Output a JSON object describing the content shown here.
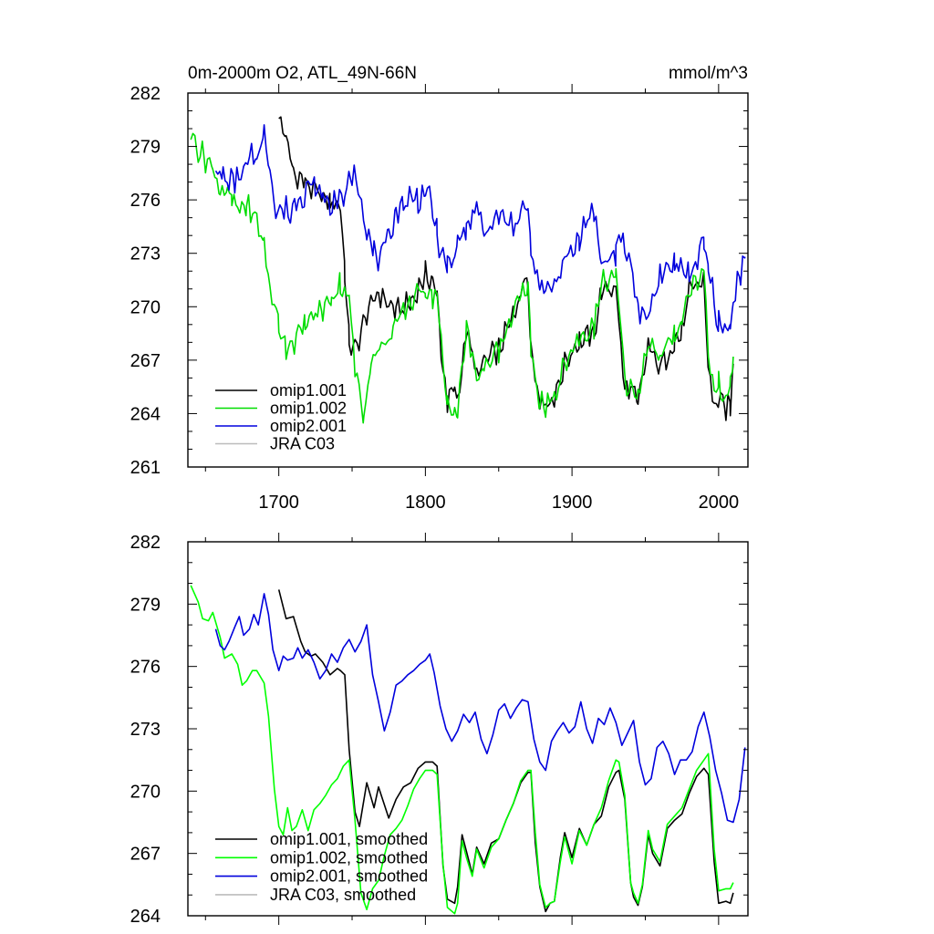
{
  "chart_data": [
    {
      "type": "line",
      "title": "0m-2000m O2, ATL_49N-66N",
      "units": "mmol/m^3",
      "xlim": [
        1638,
        2020
      ],
      "ylim": [
        261,
        282
      ],
      "xticks": [
        1700,
        1800,
        1900,
        2000
      ],
      "yticks": [
        261,
        264,
        267,
        270,
        273,
        276,
        279,
        282
      ],
      "legend_position": "lower-left",
      "series": [
        {
          "name": "omip1.001",
          "color": "#000000",
          "noise": 0.8,
          "x": [
            1700,
            1705,
            1710,
            1718,
            1725,
            1735,
            1742,
            1745,
            1748,
            1752,
            1760,
            1768,
            1780,
            1790,
            1800,
            1805,
            1808,
            1812,
            1815,
            1820,
            1822,
            1828,
            1835,
            1840,
            1850,
            1860,
            1865,
            1870,
            1872,
            1878,
            1882,
            1888,
            1895,
            1902,
            1905,
            1915,
            1920,
            1930,
            1932,
            1936,
            1940,
            1945,
            1952,
            1960,
            1970,
            1975,
            1980,
            1990,
            1993,
            1997,
            2000,
            2005,
            2008,
            2010
          ],
          "y": [
            280.6,
            279.5,
            277.5,
            277,
            276.4,
            275.8,
            275.8,
            272,
            268,
            267.5,
            269.6,
            270.8,
            269.7,
            270.2,
            271.8,
            271.5,
            270.5,
            266.5,
            264.6,
            265.4,
            264.5,
            268.8,
            266.1,
            266.9,
            267.6,
            269.5,
            270.9,
            271.8,
            267.6,
            264.8,
            264.6,
            264.8,
            266.8,
            267.8,
            268,
            268.5,
            270.8,
            271.2,
            269,
            265.2,
            265.5,
            264.4,
            267.8,
            266.5,
            268.1,
            268.5,
            270.8,
            271.5,
            266.5,
            264.3,
            264.7,
            264.2,
            264.5,
            266.8
          ]
        },
        {
          "name": "omip1.002",
          "color": "#00dd00",
          "noise": 0.8,
          "x": [
            1640,
            1645,
            1650,
            1655,
            1660,
            1665,
            1668,
            1672,
            1678,
            1685,
            1690,
            1694,
            1700,
            1705,
            1712,
            1718,
            1725,
            1730,
            1736,
            1742,
            1748,
            1752,
            1758,
            1763,
            1770,
            1778,
            1785,
            1790,
            1797,
            1800,
            1805,
            1808,
            1812,
            1815,
            1820,
            1822,
            1828,
            1835,
            1840,
            1850,
            1860,
            1865,
            1870,
            1872,
            1878,
            1882,
            1888,
            1895,
            1902,
            1905,
            1915,
            1920,
            1930,
            1932,
            1936,
            1940,
            1945,
            1952,
            1960,
            1970,
            1975,
            1980,
            1990,
            1993,
            1997,
            2000,
            2005,
            2008,
            2010
          ],
          "y": [
            279.9,
            278.8,
            278.3,
            277.8,
            276.6,
            276.3,
            276,
            275.4,
            275.7,
            274.8,
            273.5,
            271,
            269,
            267.8,
            268.2,
            269,
            269.6,
            269.8,
            270.5,
            271.3,
            270.5,
            266.5,
            264,
            266.9,
            267.8,
            268.5,
            269.8,
            270.3,
            270.9,
            271,
            270.6,
            270.8,
            266.5,
            264.5,
            264.2,
            264,
            268.8,
            266,
            266.7,
            267.4,
            269.5,
            270.8,
            271,
            267.4,
            264.7,
            264.4,
            264.7,
            266.8,
            267.8,
            268.2,
            268.8,
            271.3,
            271.6,
            270,
            265.8,
            265.4,
            265,
            268.2,
            267,
            268.5,
            269.2,
            271,
            272,
            267.3,
            265.2,
            265.6,
            265,
            265.3,
            267.2
          ]
        },
        {
          "name": "omip2.001",
          "color": "#0000dd",
          "noise": 0.9,
          "x": [
            1657,
            1662,
            1666,
            1670,
            1676,
            1680,
            1685,
            1690,
            1694,
            1698,
            1705,
            1708,
            1712,
            1716,
            1720,
            1725,
            1730,
            1735,
            1740,
            1745,
            1750,
            1755,
            1760,
            1765,
            1770,
            1775,
            1780,
            1785,
            1790,
            1795,
            1800,
            1805,
            1808,
            1812,
            1815,
            1820,
            1822,
            1828,
            1835,
            1840,
            1850,
            1860,
            1865,
            1870,
            1872,
            1878,
            1882,
            1888,
            1895,
            1902,
            1905,
            1915,
            1920,
            1930,
            1932,
            1936,
            1940,
            1945,
            1952,
            1960,
            1970,
            1975,
            1980,
            1990,
            1993,
            1997,
            2000,
            2005,
            2008,
            2010,
            2015,
            2018
          ],
          "y": [
            277.8,
            277.2,
            277,
            277.1,
            277.5,
            278.2,
            278.5,
            279.6,
            278,
            275.3,
            275.5,
            275,
            276.2,
            276.2,
            276.9,
            276.6,
            276.2,
            275.6,
            276.2,
            276,
            277.5,
            276.8,
            274.2,
            273,
            272.6,
            274.1,
            275.3,
            275.8,
            276.2,
            276,
            276.5,
            275.5,
            274,
            272.7,
            272.3,
            272.5,
            274,
            274.3,
            275.6,
            274,
            275,
            274.5,
            275.3,
            275.5,
            272.9,
            271,
            270.8,
            271.5,
            272.5,
            273.4,
            274,
            275.5,
            272.3,
            273.1,
            273.8,
            273.2,
            272.5,
            269.9,
            269.5,
            271.8,
            272.4,
            272,
            271.8,
            273.5,
            272,
            270.4,
            269,
            268.6,
            269,
            270.5,
            272,
            272.8
          ]
        },
        {
          "name": "JRA C03",
          "color": "#bbbbbb",
          "noise": 0,
          "x": [],
          "y": []
        }
      ]
    },
    {
      "type": "line",
      "title": "",
      "units": "",
      "xlim": [
        1638,
        2020
      ],
      "ylim": [
        264,
        282
      ],
      "xticks": [
        1700,
        1800,
        1900,
        2000
      ],
      "yticks": [
        264,
        267,
        270,
        273,
        276,
        279,
        282
      ],
      "legend_position": "lower-left",
      "series": [
        {
          "name": "omip1.001, smoothed",
          "color": "#000000",
          "noise": 0,
          "x": [
            1700,
            1705,
            1710,
            1715,
            1718,
            1722,
            1725,
            1730,
            1735,
            1740,
            1742,
            1745,
            1748,
            1752,
            1755,
            1760,
            1765,
            1768,
            1775,
            1780,
            1785,
            1790,
            1795,
            1800,
            1805,
            1808,
            1812,
            1815,
            1820,
            1822,
            1825,
            1828,
            1832,
            1835,
            1840,
            1845,
            1850,
            1855,
            1860,
            1865,
            1870,
            1872,
            1875,
            1878,
            1882,
            1885,
            1888,
            1892,
            1895,
            1900,
            1905,
            1910,
            1915,
            1920,
            1925,
            1930,
            1932,
            1936,
            1940,
            1942,
            1945,
            1948,
            1952,
            1955,
            1960,
            1965,
            1970,
            1975,
            1980,
            1985,
            1990,
            1993,
            1997,
            2000,
            2005,
            2008,
            2010
          ],
          "y": [
            279.7,
            278.3,
            278.4,
            277.2,
            276.7,
            276.5,
            276.6,
            276.2,
            275.6,
            275.9,
            275.8,
            275.6,
            272,
            269,
            268.3,
            270.4,
            269.2,
            270.2,
            268.7,
            269.6,
            270.2,
            270.4,
            271.1,
            271.4,
            271.4,
            271.2,
            266.4,
            264.8,
            264.6,
            265.4,
            267.9,
            267.1,
            266,
            267.3,
            266.5,
            267.5,
            267.7,
            268.6,
            269.4,
            270.4,
            270.9,
            270.9,
            267.5,
            265.4,
            264.2,
            264.6,
            264.7,
            266.8,
            268,
            266.8,
            268.2,
            267.4,
            268.4,
            268.8,
            270.2,
            270.9,
            271,
            269.6,
            265.6,
            264.9,
            264.5,
            265.4,
            267.9,
            267,
            266.4,
            268.2,
            268.6,
            268.9,
            269.9,
            270.7,
            271.1,
            270.8,
            266.6,
            264.6,
            264.7,
            264.6,
            265.1
          ]
        },
        {
          "name": "omip1.002, smoothed",
          "color": "#00ff00",
          "noise": 0,
          "x": [
            1640,
            1645,
            1648,
            1652,
            1655,
            1660,
            1663,
            1668,
            1672,
            1675,
            1678,
            1682,
            1685,
            1690,
            1693,
            1697,
            1700,
            1703,
            1706,
            1709,
            1712,
            1716,
            1720,
            1724,
            1728,
            1732,
            1736,
            1740,
            1744,
            1748,
            1752,
            1756,
            1760,
            1764,
            1768,
            1772,
            1776,
            1780,
            1784,
            1788,
            1792,
            1796,
            1800,
            1805,
            1808,
            1812,
            1815,
            1820,
            1822,
            1825,
            1828,
            1832,
            1835,
            1840,
            1845,
            1850,
            1855,
            1860,
            1865,
            1870,
            1872,
            1875,
            1878,
            1882,
            1885,
            1888,
            1892,
            1895,
            1900,
            1905,
            1910,
            1915,
            1920,
            1925,
            1930,
            1932,
            1936,
            1940,
            1942,
            1945,
            1948,
            1952,
            1955,
            1960,
            1965,
            1970,
            1975,
            1980,
            1985,
            1990,
            1993,
            1997,
            2000,
            2005,
            2008,
            2010
          ],
          "y": [
            279.9,
            279.1,
            278.3,
            278.2,
            278.6,
            277.4,
            276.4,
            276.6,
            276.1,
            275.1,
            275.3,
            275.8,
            275.8,
            275.2,
            273.6,
            270.1,
            268.3,
            267.9,
            269.2,
            268.1,
            268.3,
            269.1,
            268.1,
            269.1,
            269.4,
            269.8,
            270.3,
            270.6,
            271.2,
            271.5,
            268.6,
            265.1,
            264.3,
            265.3,
            265.7,
            266.9,
            267.9,
            268.2,
            268.6,
            269.3,
            270.1,
            270.6,
            271,
            271,
            270.8,
            266.5,
            264.4,
            264.1,
            264.6,
            267.6,
            266.8,
            265.9,
            267.2,
            266.3,
            267.3,
            267.7,
            268.6,
            269.4,
            270.5,
            271,
            271,
            268,
            265.5,
            264.4,
            264.6,
            264.7,
            266.6,
            267.8,
            266.5,
            268.1,
            267.4,
            268.4,
            269.2,
            270.5,
            271.5,
            271.4,
            269.8,
            265.6,
            265.1,
            264.6,
            265.5,
            268.1,
            267.2,
            266.6,
            268.4,
            268.8,
            269.2,
            270.1,
            271,
            271.5,
            271.8,
            267.2,
            265.2,
            265.3,
            265.3,
            265.6
          ]
        },
        {
          "name": "omip2.001, smoothed",
          "color": "#0000dd",
          "noise": 0,
          "x": [
            1657,
            1660,
            1663,
            1666,
            1670,
            1673,
            1676,
            1680,
            1683,
            1686,
            1690,
            1693,
            1696,
            1700,
            1703,
            1706,
            1710,
            1713,
            1716,
            1720,
            1724,
            1728,
            1732,
            1736,
            1740,
            1744,
            1748,
            1752,
            1756,
            1760,
            1764,
            1768,
            1772,
            1776,
            1780,
            1784,
            1788,
            1792,
            1796,
            1800,
            1803,
            1806,
            1810,
            1814,
            1818,
            1822,
            1826,
            1830,
            1834,
            1838,
            1842,
            1846,
            1850,
            1854,
            1858,
            1862,
            1866,
            1870,
            1874,
            1878,
            1882,
            1886,
            1890,
            1894,
            1898,
            1902,
            1906,
            1910,
            1914,
            1918,
            1922,
            1926,
            1930,
            1934,
            1938,
            1942,
            1946,
            1950,
            1954,
            1958,
            1962,
            1966,
            1970,
            1974,
            1978,
            1982,
            1986,
            1990,
            1994,
            1998,
            2002,
            2006,
            2010,
            2014,
            2018
          ],
          "y": [
            277.8,
            277,
            276.8,
            277.2,
            277.9,
            278.4,
            277.5,
            277.8,
            278.5,
            278,
            279.5,
            278.5,
            276.8,
            275.8,
            276.5,
            276.3,
            276.4,
            276.9,
            276.4,
            276.8,
            276.2,
            275.4,
            275.8,
            276.6,
            276.2,
            276.9,
            277.3,
            276.7,
            277.2,
            278,
            275.6,
            274.3,
            272.9,
            273.8,
            275.1,
            275.3,
            275.6,
            275.8,
            276.1,
            276.3,
            276.6,
            275.7,
            274.1,
            273,
            272.4,
            272.9,
            273.7,
            273.3,
            273.8,
            272.5,
            271.8,
            272.7,
            273.9,
            274.2,
            273.5,
            274,
            274.4,
            274.3,
            272.5,
            271.4,
            271,
            272.4,
            272.9,
            273.3,
            272.8,
            273.1,
            274.3,
            273,
            272.3,
            273.5,
            273.2,
            274,
            273.3,
            272.2,
            272.8,
            273.4,
            271.4,
            270.3,
            270.6,
            272.1,
            272.4,
            271.8,
            270.8,
            271.5,
            271.5,
            271.9,
            273.1,
            273.8,
            272.6,
            271,
            269.9,
            268.6,
            268.5,
            269.6,
            272.1
          ]
        },
        {
          "name": "JRA C03, smoothed",
          "color": "#bbbbbb",
          "noise": 0,
          "x": [],
          "y": []
        }
      ]
    }
  ]
}
